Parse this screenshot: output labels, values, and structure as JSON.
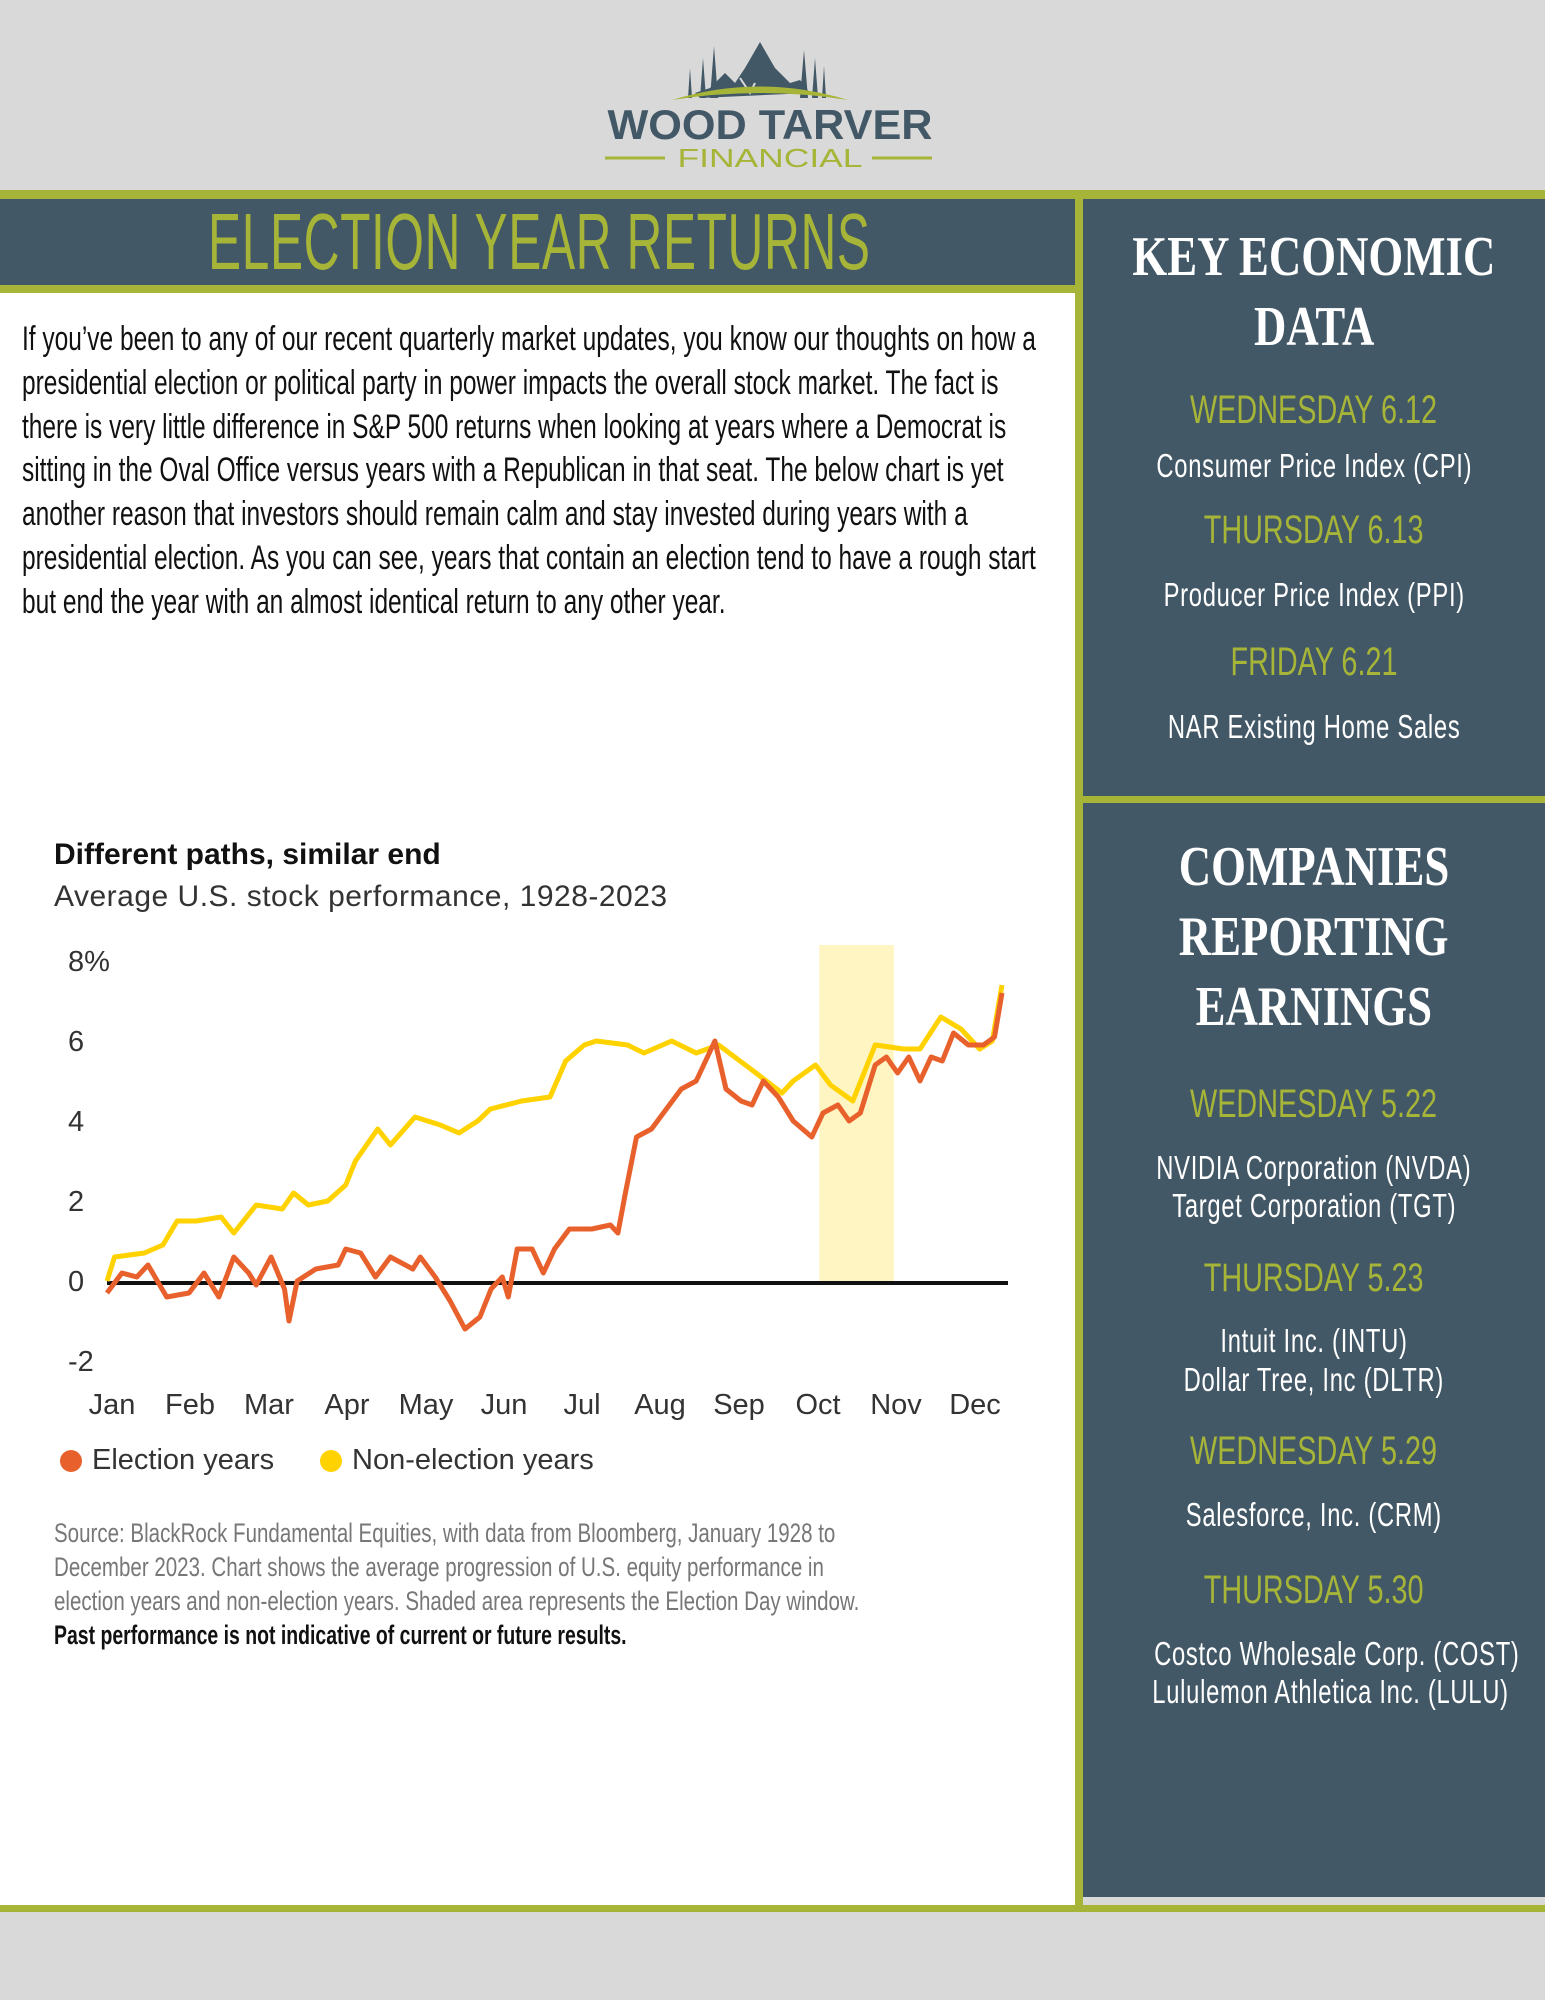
{
  "logo": {
    "name_line1": "WOOD TARVER",
    "name_line2": "FINANCIAL",
    "colors": {
      "slate": "#435867",
      "green": "#a6b537"
    }
  },
  "article": {
    "title": "ELECTION YEAR RETURNS",
    "body": "If you’ve been to any of our recent quarterly market updates, you know our thoughts on how a presidential election or political party in power impacts the overall stock market. The fact is there is very little difference in S&P 500 returns when looking at years where a Democrat is sitting in the Oval Office versus years with a Republican in that seat. The below chart is yet another reason that investors should remain calm and stay invested during years with a presidential election. As you can see, years that contain an election tend to have a rough start but end the year with an almost identical return to any other year."
  },
  "chart_data": {
    "type": "line",
    "title": "Different paths, similar end",
    "subtitle": "Average U.S. stock performance, 1928-2023",
    "xlabel": "",
    "ylabel": "",
    "categories": [
      "Jan",
      "Feb",
      "Mar",
      "Apr",
      "May",
      "Jun",
      "Jul",
      "Aug",
      "Sep",
      "Oct",
      "Nov",
      "Dec"
    ],
    "yticks": [
      "8%",
      "6",
      "4",
      "2",
      "0",
      "-2"
    ],
    "ytick_values": [
      8,
      6,
      4,
      2,
      0,
      -2
    ],
    "ylim": [
      -2,
      8
    ],
    "xlim": [
      0,
      12
    ],
    "shaded_window": {
      "label": "Election Day window",
      "x": [
        9.55,
        10.55
      ],
      "color": "#fff5c2"
    },
    "series": [
      {
        "name": "Election years",
        "color": "#e8612c",
        "x": [
          0,
          0.2,
          0.4,
          0.55,
          0.8,
          1.1,
          1.3,
          1.5,
          1.7,
          1.9,
          2.0,
          2.2,
          2.38,
          2.44,
          2.55,
          2.8,
          3.1,
          3.2,
          3.4,
          3.6,
          3.8,
          4.1,
          4.2,
          4.4,
          4.6,
          4.8,
          5.0,
          5.15,
          5.3,
          5.38,
          5.5,
          5.7,
          5.85,
          6.0,
          6.2,
          6.5,
          6.75,
          6.85,
          6.95,
          7.1,
          7.3,
          7.5,
          7.7,
          7.9,
          8.15,
          8.3,
          8.5,
          8.65,
          8.8,
          9.0,
          9.2,
          9.45,
          9.6,
          9.8,
          9.95,
          10.1,
          10.3,
          10.45,
          10.6,
          10.75,
          10.9,
          11.05,
          11.2,
          11.35,
          11.55,
          11.75,
          11.9,
          12
        ],
        "values": [
          -0.3,
          0.2,
          0.1,
          0.4,
          -0.4,
          -0.3,
          0.2,
          -0.4,
          0.6,
          0.2,
          -0.1,
          0.6,
          -0.2,
          -1.0,
          0.0,
          0.3,
          0.4,
          0.8,
          0.7,
          0.1,
          0.6,
          0.3,
          0.6,
          0.1,
          -0.5,
          -1.2,
          -0.9,
          -0.2,
          0.1,
          -0.4,
          0.8,
          0.8,
          0.2,
          0.8,
          1.3,
          1.3,
          1.4,
          1.2,
          2.2,
          3.6,
          3.8,
          4.3,
          4.8,
          5.0,
          6.0,
          4.8,
          4.5,
          4.4,
          5.0,
          4.6,
          4.0,
          3.6,
          4.2,
          4.4,
          4.0,
          4.2,
          5.4,
          5.6,
          5.2,
          5.6,
          5.0,
          5.6,
          5.5,
          6.2,
          5.9,
          5.9,
          6.1,
          7.2
        ]
      },
      {
        "name": "Non-election years",
        "color": "#ffd200",
        "x": [
          0,
          0.1,
          0.5,
          0.75,
          0.94,
          1.2,
          1.53,
          1.7,
          2.0,
          2.35,
          2.5,
          2.7,
          2.96,
          3.2,
          3.33,
          3.63,
          3.8,
          4.13,
          4.47,
          4.72,
          4.97,
          5.14,
          5.56,
          5.94,
          6.15,
          6.4,
          6.56,
          6.98,
          7.2,
          7.57,
          7.9,
          8.2,
          8.63,
          9.05,
          9.2,
          9.5,
          9.7,
          10.0,
          10.3,
          10.68,
          10.9,
          11.18,
          11.45,
          11.7,
          11.87,
          12
        ],
        "values": [
          0,
          0.6,
          0.7,
          0.9,
          1.5,
          1.5,
          1.6,
          1.2,
          1.9,
          1.8,
          2.2,
          1.9,
          2.0,
          2.4,
          3.0,
          3.8,
          3.4,
          4.1,
          3.9,
          3.7,
          4.0,
          4.3,
          4.5,
          4.6,
          5.5,
          5.9,
          6.0,
          5.9,
          5.7,
          6.0,
          5.7,
          5.9,
          5.3,
          4.7,
          5.0,
          5.4,
          4.9,
          4.5,
          5.9,
          5.8,
          5.8,
          6.6,
          6.3,
          5.8,
          6.0,
          7.4
        ]
      }
    ],
    "legend_position": "bottom-left",
    "source": [
      "Source: BlackRock Fundamental Equities, with data from Bloomberg, January 1928 to",
      "December 2023. Chart shows the average progression of U.S. equity performance in",
      "election years and non-election years. Shaded area represents the Election Day window."
    ],
    "disclaimer": "Past performance is not indicative of current or future results."
  },
  "sidebar": {
    "economic": {
      "heading_line1": "KEY ECONOMIC",
      "heading_line2": "DATA",
      "events": [
        {
          "day": "WEDNESDAY 6.12",
          "items": [
            "Consumer Price Index (CPI)"
          ]
        },
        {
          "day": "THURSDAY 6.13",
          "items": [
            "Producer Price Index (PPI)"
          ]
        },
        {
          "day": "FRIDAY 6.21",
          "items": [
            "NAR Existing Home Sales"
          ]
        }
      ]
    },
    "earnings": {
      "heading_line1": "COMPANIES",
      "heading_line2": "REPORTING",
      "heading_line3": "EARNINGS",
      "events": [
        {
          "day": "WEDNESDAY 5.22",
          "items": [
            "NVIDIA Corporation (NVDA)",
            "Target Corporation (TGT)"
          ]
        },
        {
          "day": "THURSDAY 5.23",
          "items": [
            "Intuit Inc. (INTU)",
            "Dollar Tree, Inc (DLTR)"
          ]
        },
        {
          "day": "WEDNESDAY 5.29",
          "items": [
            "Salesforce, Inc. (CRM)"
          ]
        },
        {
          "day": "THURSDAY 5.30",
          "items": [
            "Costco Wholesale Corp. (COST)",
            "Lululemon Athletica Inc. (LULU)"
          ]
        }
      ]
    }
  }
}
